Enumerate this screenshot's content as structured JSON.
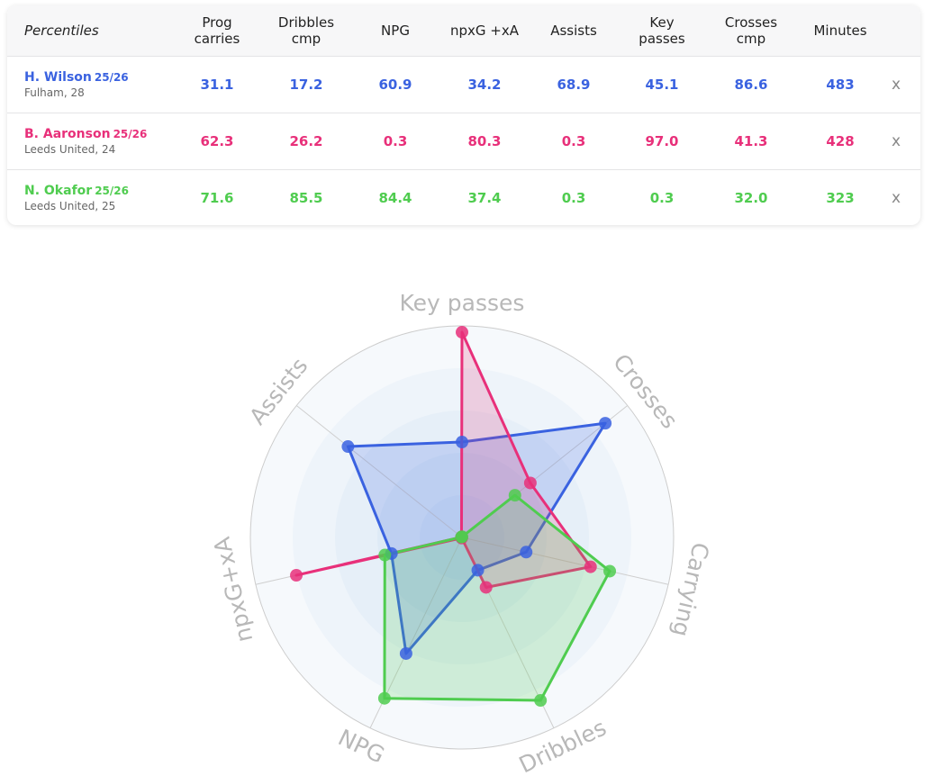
{
  "table": {
    "columns": [
      "Percentiles",
      "Prog\ncarries",
      "Dribbles\ncmp",
      "NPG",
      "npxG +xA",
      "Assists",
      "Key\npasses",
      "Crosses\ncmp",
      "Minutes"
    ],
    "remove_label": "x",
    "rows": [
      {
        "name": "H. Wilson",
        "season": "25/26",
        "club": "Fulham, 28",
        "color": "#3a62e0",
        "values": [
          "31.1",
          "17.2",
          "60.9",
          "34.2",
          "68.9",
          "45.1",
          "86.6",
          "483"
        ]
      },
      {
        "name": "B. Aaronson",
        "season": "25/26",
        "club": "Leeds United, 24",
        "color": "#e8307a",
        "values": [
          "62.3",
          "26.2",
          "0.3",
          "80.3",
          "0.3",
          "97.0",
          "41.3",
          "428"
        ]
      },
      {
        "name": "N. Okafor",
        "season": "25/26",
        "club": "Leeds United, 25",
        "color": "#4fcc4f",
        "values": [
          "71.6",
          "85.5",
          "84.4",
          "37.4",
          "0.3",
          "0.3",
          "32.0",
          "323"
        ]
      }
    ]
  },
  "chart_data": {
    "type": "radar",
    "categories": [
      "Key passes",
      "Crosses",
      "Carrying",
      "Dribbles",
      "NPG",
      "npxG+xA",
      "Assists"
    ],
    "rlim": [
      0,
      100
    ],
    "series": [
      {
        "color": "#3a62e0",
        "values": [
          45.1,
          86.6,
          31.1,
          17.2,
          60.9,
          34.2,
          68.9
        ]
      },
      {
        "color": "#e8307a",
        "values": [
          97.0,
          41.3,
          62.3,
          26.2,
          0.3,
          80.3,
          0.3
        ]
      },
      {
        "color": "#4fcc4f",
        "values": [
          0.3,
          32.0,
          71.6,
          85.5,
          84.4,
          37.4,
          0.3
        ]
      }
    ]
  }
}
